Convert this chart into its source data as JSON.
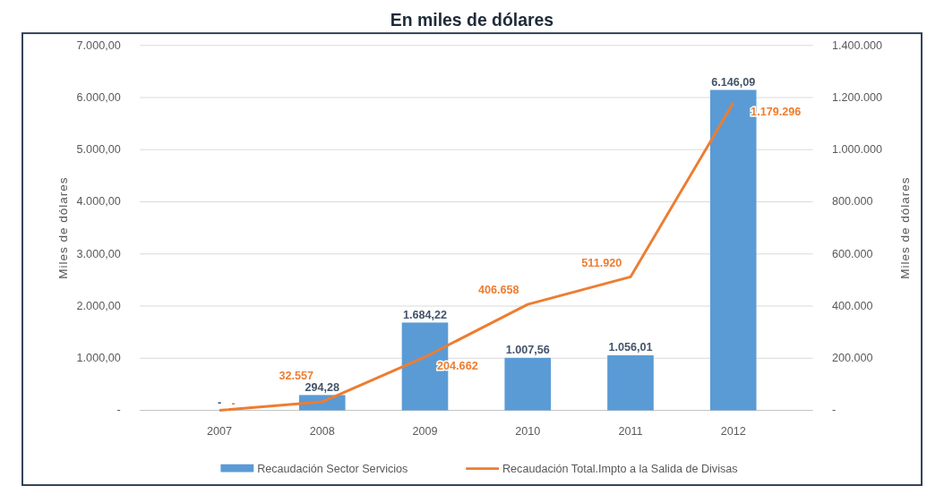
{
  "chart_data": {
    "type": "bar",
    "title": "En miles de dólares",
    "ylabel": "Miles de dólares",
    "y2label": "Miles de dólares",
    "categories": [
      "2007",
      "2008",
      "2009",
      "2010",
      "2011",
      "2012"
    ],
    "series": [
      {
        "name": "Recaudación Sector Servicios",
        "color": "#5b9bd5",
        "values": [
          0,
          294.28,
          1684.22,
          1007.56,
          1056.01,
          6146.09
        ],
        "value_labels": [
          "-",
          "294,28",
          "1.684,22",
          "1.007,56",
          "1.056,01",
          "6.146,09"
        ]
      },
      {
        "name": "Recaudación Total.Impto a la Salida de Divisas",
        "type": "line",
        "axis": "y2",
        "color": "#ed7d31",
        "values": [
          0,
          32557,
          204662,
          406658,
          511920,
          1179296
        ],
        "value_labels": [
          "-",
          "32.557",
          "204.662",
          "406.658",
          "511.920",
          "1.179.296"
        ]
      }
    ],
    "ylim": [
      0,
      7000
    ],
    "yticks": [
      {
        "value": 0,
        "label": "-"
      },
      {
        "value": 1000,
        "label": "1.000,00"
      },
      {
        "value": 2000,
        "label": "2.000,00"
      },
      {
        "value": 3000,
        "label": "3.000,00"
      },
      {
        "value": 4000,
        "label": "4.000,00"
      },
      {
        "value": 5000,
        "label": "5.000,00"
      },
      {
        "value": 6000,
        "label": "6.000,00"
      },
      {
        "value": 7000,
        "label": "7.000,00"
      }
    ],
    "y2lim": [
      0,
      1400000
    ],
    "y2ticks": [
      {
        "value": 0,
        "label": "-"
      },
      {
        "value": 200000,
        "label": "200.000"
      },
      {
        "value": 400000,
        "label": "400.000"
      },
      {
        "value": 600000,
        "label": "600.000"
      },
      {
        "value": 800000,
        "label": "800.000"
      },
      {
        "value": 1000000,
        "label": "1.000.000"
      },
      {
        "value": 1200000,
        "label": "1.200.000"
      },
      {
        "value": 1400000,
        "label": "1.400.000"
      }
    ],
    "grid": "y",
    "legend": "bottom",
    "marker": "none",
    "line_style": "solid"
  }
}
